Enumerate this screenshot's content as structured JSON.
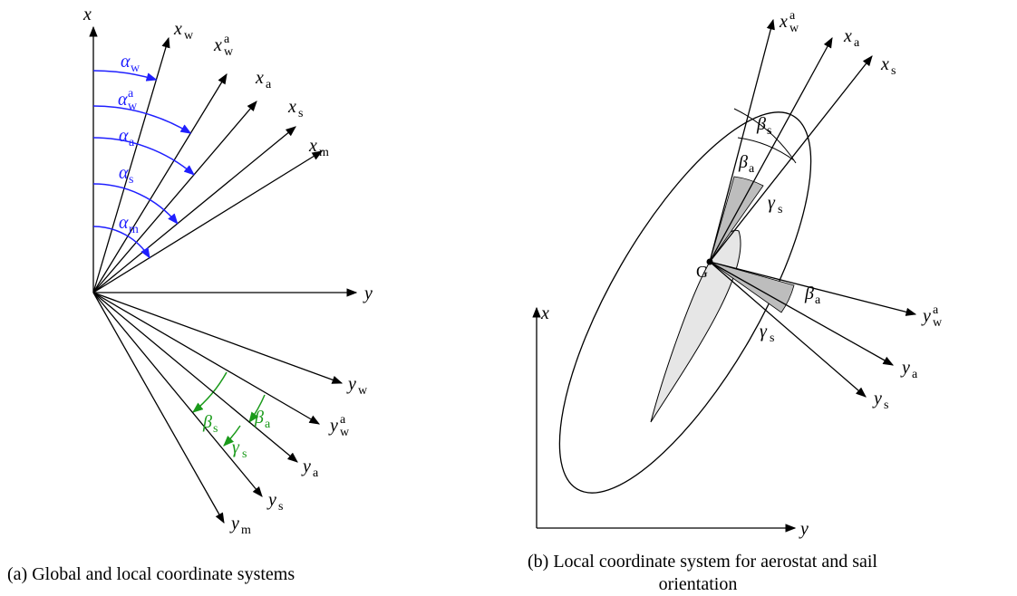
{
  "panel_a": {
    "axis_labels": [
      {
        "main": "x"
      },
      {
        "main": "y"
      }
    ],
    "rays": [
      {
        "main": "x",
        "sub": "w"
      },
      {
        "main": "x",
        "sub": "w",
        "sup": "a"
      },
      {
        "main": "x",
        "sub": "a"
      },
      {
        "main": "x",
        "sub": "s"
      },
      {
        "main": "x",
        "sub": "m"
      },
      {
        "main": "y",
        "sub": "w"
      },
      {
        "main": "y",
        "sub": "w",
        "sup": "a"
      },
      {
        "main": "y",
        "sub": "a"
      },
      {
        "main": "y",
        "sub": "s"
      },
      {
        "main": "y",
        "sub": "m"
      }
    ],
    "angles": [
      {
        "main": "α",
        "sub": "w"
      },
      {
        "main": "α",
        "sub": "w",
        "sup": "a"
      },
      {
        "main": "α",
        "sub": "a"
      },
      {
        "main": "α",
        "sub": "s"
      },
      {
        "main": "α",
        "sub": "m"
      }
    ],
    "lateral_angles": [
      {
        "main": "β",
        "sub": "s"
      },
      {
        "main": "β",
        "sub": "a"
      },
      {
        "main": "γ",
        "sub": "s"
      }
    ],
    "caption": "(a)  Global and local coordinate systems"
  },
  "panel_b": {
    "axis_labels": [
      {
        "main": "x"
      },
      {
        "main": "y"
      }
    ],
    "rays": [
      {
        "main": "x",
        "sub": "w",
        "sup": "a"
      },
      {
        "main": "x",
        "sub": "a"
      },
      {
        "main": "x",
        "sub": "s"
      },
      {
        "main": "y",
        "sub": "w",
        "sup": "a"
      },
      {
        "main": "y",
        "sub": "a"
      },
      {
        "main": "y",
        "sub": "s"
      }
    ],
    "angles": [
      {
        "main": "β",
        "sub": "s"
      },
      {
        "main": "β",
        "sub": "a"
      },
      {
        "main": "γ",
        "sub": "s"
      },
      {
        "main": "β",
        "sub": "a"
      },
      {
        "main": "γ",
        "sub": "s"
      }
    ],
    "point": "G",
    "caption": [
      "(b)  Local coordinate system for aerostat and sail",
      "orientation"
    ]
  }
}
